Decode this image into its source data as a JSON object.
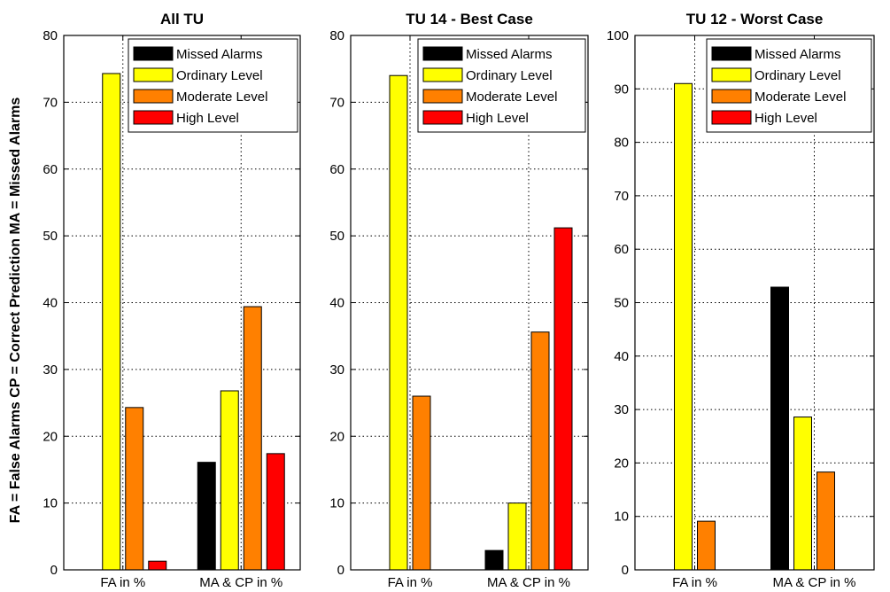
{
  "side_label": "FA = False Alarms   CP = Correct Prediction   MA = Missed Alarms",
  "legend": {
    "entries": [
      {
        "label": "Missed Alarms",
        "color": "#000000"
      },
      {
        "label": "Ordinary Level",
        "color": "#ffff00"
      },
      {
        "label": "Moderate Level",
        "color": "#ff8000"
      },
      {
        "label": "High Level",
        "color": "#ff0000"
      }
    ]
  },
  "chart_data": [
    {
      "type": "bar",
      "title": "All TU",
      "categories": [
        "FA in %",
        "MA & CP in %"
      ],
      "ylim": [
        0,
        80
      ],
      "yticks": [
        0,
        10,
        20,
        30,
        40,
        50,
        60,
        70,
        80
      ],
      "grid": true,
      "legend_position": "top-right",
      "series": [
        {
          "name": "Missed Alarms",
          "color": "#000000",
          "values": [
            null,
            16.1
          ]
        },
        {
          "name": "Ordinary Level",
          "color": "#ffff00",
          "values": [
            74.3,
            26.8
          ]
        },
        {
          "name": "Moderate Level",
          "color": "#ff8000",
          "values": [
            24.3,
            39.4
          ]
        },
        {
          "name": "High Level",
          "color": "#ff0000",
          "values": [
            1.3,
            17.4
          ]
        }
      ]
    },
    {
      "type": "bar",
      "title": "TU 14 - Best Case",
      "categories": [
        "FA in %",
        "MA & CP in %"
      ],
      "ylim": [
        0,
        80
      ],
      "yticks": [
        0,
        10,
        20,
        30,
        40,
        50,
        60,
        70,
        80
      ],
      "grid": true,
      "legend_position": "top-right",
      "series": [
        {
          "name": "Missed Alarms",
          "color": "#000000",
          "values": [
            null,
            2.9
          ]
        },
        {
          "name": "Ordinary Level",
          "color": "#ffff00",
          "values": [
            74.0,
            10.0
          ]
        },
        {
          "name": "Moderate Level",
          "color": "#ff8000",
          "values": [
            26.0,
            35.6
          ]
        },
        {
          "name": "High Level",
          "color": "#ff0000",
          "values": [
            null,
            51.2
          ]
        }
      ]
    },
    {
      "type": "bar",
      "title": "TU 12 - Worst Case",
      "categories": [
        "FA in %",
        "MA & CP in %"
      ],
      "ylim": [
        0,
        100
      ],
      "yticks": [
        0,
        10,
        20,
        30,
        40,
        50,
        60,
        70,
        80,
        90,
        100
      ],
      "grid": true,
      "legend_position": "top-right",
      "series": [
        {
          "name": "Missed Alarms",
          "color": "#000000",
          "values": [
            null,
            52.9
          ]
        },
        {
          "name": "Ordinary Level",
          "color": "#ffff00",
          "values": [
            91.0,
            28.6
          ]
        },
        {
          "name": "Moderate Level",
          "color": "#ff8000",
          "values": [
            9.1,
            18.3
          ]
        },
        {
          "name": "High Level",
          "color": "#ff0000",
          "values": [
            null,
            null
          ]
        }
      ]
    }
  ]
}
